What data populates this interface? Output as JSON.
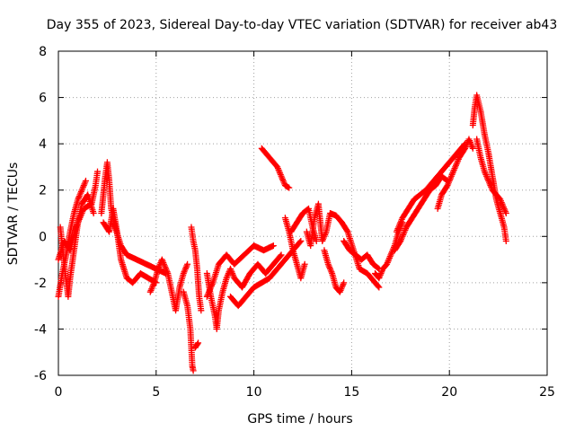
{
  "chart_data": {
    "type": "scatter",
    "title": "Day 355 of 2023, Sidereal Day-to-day VTEC variation (SDTVAR) for receiver ab43",
    "xlabel": "GPS time / hours",
    "ylabel": "SDTVAR / TECUs",
    "xlim": [
      0,
      25
    ],
    "ylim": [
      -6,
      8
    ],
    "xticks": [
      0,
      5,
      10,
      15,
      20,
      25
    ],
    "yticks": [
      -6,
      -4,
      -2,
      0,
      2,
      4,
      6,
      8
    ],
    "grid": true,
    "marker": "+",
    "series_color": "#ff0000",
    "tracks": [
      [
        [
          0.0,
          -2.6
        ],
        [
          0.2,
          -1.6
        ],
        [
          0.4,
          -0.8
        ],
        [
          0.6,
          0.2
        ],
        [
          0.8,
          1.0
        ],
        [
          1.0,
          1.6
        ],
        [
          1.2,
          2.0
        ],
        [
          1.4,
          2.4
        ]
      ],
      [
        [
          0.1,
          0.4
        ],
        [
          0.2,
          -0.4
        ],
        [
          0.35,
          -1.6
        ],
        [
          0.5,
          -2.6
        ],
        [
          0.6,
          -1.8
        ],
        [
          0.8,
          -0.6
        ],
        [
          1.0,
          0.6
        ],
        [
          1.2,
          1.4
        ],
        [
          1.5,
          1.8
        ],
        [
          1.8,
          1.0
        ]
      ],
      [
        [
          0.0,
          -1.0
        ],
        [
          0.3,
          -0.2
        ],
        [
          0.6,
          -0.6
        ],
        [
          0.9,
          0.4
        ],
        [
          1.3,
          1.2
        ],
        [
          1.7,
          1.4
        ],
        [
          1.9,
          2.2
        ],
        [
          2.0,
          2.8
        ]
      ],
      [
        [
          2.2,
          1.0
        ],
        [
          2.4,
          2.6
        ],
        [
          2.5,
          3.2
        ],
        [
          2.6,
          2.4
        ],
        [
          2.7,
          1.2
        ],
        [
          2.9,
          0.4
        ],
        [
          3.2,
          -0.4
        ],
        [
          3.5,
          -0.8
        ],
        [
          4.0,
          -1.0
        ],
        [
          4.5,
          -1.2
        ],
        [
          5.0,
          -1.4
        ],
        [
          5.5,
          -1.6
        ]
      ],
      [
        [
          2.3,
          0.6
        ],
        [
          2.6,
          0.2
        ],
        [
          2.8,
          1.2
        ],
        [
          3.0,
          0.2
        ],
        [
          3.2,
          -1.0
        ],
        [
          3.5,
          -1.8
        ],
        [
          3.8,
          -2.0
        ],
        [
          4.2,
          -1.6
        ],
        [
          4.6,
          -1.8
        ],
        [
          5.0,
          -2.0
        ]
      ],
      [
        [
          4.7,
          -2.4
        ],
        [
          4.9,
          -2.0
        ],
        [
          5.1,
          -1.4
        ],
        [
          5.3,
          -1.0
        ],
        [
          5.6,
          -1.6
        ],
        [
          5.8,
          -2.4
        ],
        [
          6.0,
          -3.2
        ],
        [
          6.2,
          -2.2
        ],
        [
          6.4,
          -1.6
        ],
        [
          6.6,
          -1.2
        ]
      ],
      [
        [
          6.4,
          -2.4
        ],
        [
          6.6,
          -3.0
        ],
        [
          6.75,
          -4.0
        ],
        [
          6.85,
          -5.6
        ],
        [
          6.9,
          -5.8
        ]
      ],
      [
        [
          6.8,
          0.4
        ],
        [
          6.9,
          -0.2
        ],
        [
          7.0,
          -0.6
        ],
        [
          7.1,
          -1.4
        ],
        [
          7.2,
          -2.6
        ],
        [
          7.3,
          -3.2
        ]
      ],
      [
        [
          7.0,
          -4.8
        ],
        [
          7.15,
          -4.6
        ]
      ],
      [
        [
          7.6,
          -1.6
        ],
        [
          7.8,
          -2.6
        ],
        [
          8.0,
          -3.4
        ],
        [
          8.1,
          -4.0
        ],
        [
          8.2,
          -3.2
        ],
        [
          8.4,
          -2.4
        ],
        [
          8.6,
          -1.8
        ],
        [
          8.8,
          -1.4
        ],
        [
          9.0,
          -1.8
        ],
        [
          9.4,
          -2.2
        ],
        [
          9.8,
          -1.6
        ],
        [
          10.2,
          -1.2
        ],
        [
          10.6,
          -1.6
        ],
        [
          11.0,
          -1.2
        ],
        [
          11.4,
          -0.8
        ]
      ],
      [
        [
          7.6,
          -2.6
        ],
        [
          7.9,
          -2.0
        ],
        [
          8.2,
          -1.2
        ],
        [
          8.6,
          -0.8
        ],
        [
          9.0,
          -1.2
        ],
        [
          9.5,
          -0.8
        ],
        [
          10.0,
          -0.4
        ],
        [
          10.5,
          -0.6
        ],
        [
          11.0,
          -0.4
        ]
      ],
      [
        [
          8.8,
          -2.6
        ],
        [
          9.2,
          -3.0
        ],
        [
          9.6,
          -2.6
        ],
        [
          10.0,
          -2.2
        ],
        [
          10.4,
          -2.0
        ],
        [
          10.8,
          -1.8
        ],
        [
          11.2,
          -1.4
        ],
        [
          11.6,
          -1.0
        ],
        [
          12.0,
          -0.6
        ],
        [
          12.4,
          -0.2
        ]
      ],
      [
        [
          10.4,
          3.8
        ],
        [
          10.8,
          3.4
        ],
        [
          11.2,
          3.0
        ],
        [
          11.4,
          2.6
        ],
        [
          11.6,
          2.2
        ],
        [
          11.8,
          2.1
        ]
      ],
      [
        [
          11.6,
          0.8
        ],
        [
          11.8,
          0.2
        ],
        [
          12.0,
          -0.6
        ],
        [
          12.2,
          -1.2
        ],
        [
          12.4,
          -1.8
        ],
        [
          12.6,
          -1.2
        ]
      ],
      [
        [
          11.9,
          0.2
        ],
        [
          12.2,
          0.6
        ],
        [
          12.5,
          1.0
        ],
        [
          12.8,
          1.2
        ],
        [
          13.0,
          0.4
        ],
        [
          13.2,
          -0.2
        ]
      ],
      [
        [
          12.7,
          0.2
        ],
        [
          12.9,
          -0.4
        ],
        [
          13.1,
          0.8
        ],
        [
          13.3,
          1.4
        ],
        [
          13.5,
          -0.2
        ],
        [
          13.7,
          0.2
        ],
        [
          13.9,
          1.0
        ],
        [
          14.2,
          0.9
        ],
        [
          14.5,
          0.6
        ],
        [
          14.8,
          0.2
        ],
        [
          15.1,
          -0.6
        ],
        [
          15.4,
          -1.4
        ],
        [
          15.8,
          -1.6
        ],
        [
          16.2,
          -2.0
        ],
        [
          16.4,
          -2.2
        ]
      ],
      [
        [
          13.6,
          -0.6
        ],
        [
          13.8,
          -1.2
        ],
        [
          14.0,
          -1.6
        ],
        [
          14.2,
          -2.2
        ],
        [
          14.4,
          -2.4
        ],
        [
          14.6,
          -2.0
        ]
      ],
      [
        [
          14.6,
          -0.2
        ],
        [
          14.9,
          -0.6
        ],
        [
          15.2,
          -0.8
        ],
        [
          15.5,
          -1.0
        ],
        [
          15.8,
          -0.8
        ],
        [
          16.1,
          -1.2
        ],
        [
          16.4,
          -1.4
        ]
      ],
      [
        [
          16.2,
          -1.6
        ],
        [
          16.4,
          -1.8
        ],
        [
          16.6,
          -1.4
        ],
        [
          16.8,
          -1.2
        ],
        [
          17.0,
          -0.8
        ],
        [
          17.2,
          -0.4
        ],
        [
          17.4,
          0.2
        ],
        [
          17.6,
          0.6
        ]
      ],
      [
        [
          17.2,
          -0.6
        ],
        [
          17.5,
          -0.2
        ],
        [
          17.8,
          0.4
        ],
        [
          18.1,
          0.8
        ],
        [
          18.4,
          1.2
        ],
        [
          18.7,
          1.6
        ],
        [
          19.0,
          2.0
        ],
        [
          19.3,
          2.2
        ],
        [
          19.6,
          2.6
        ],
        [
          19.9,
          2.4
        ]
      ],
      [
        [
          17.3,
          0.2
        ],
        [
          17.6,
          0.8
        ],
        [
          17.9,
          1.2
        ],
        [
          18.2,
          1.6
        ],
        [
          18.5,
          1.8
        ],
        [
          18.8,
          2.0
        ],
        [
          19.2,
          2.4
        ],
        [
          19.6,
          2.8
        ],
        [
          20.0,
          3.2
        ],
        [
          20.4,
          3.6
        ],
        [
          20.8,
          4.0
        ]
      ],
      [
        [
          19.4,
          1.2
        ],
        [
          19.6,
          1.8
        ],
        [
          19.9,
          2.2
        ],
        [
          20.2,
          2.8
        ],
        [
          20.5,
          3.4
        ],
        [
          20.8,
          3.8
        ],
        [
          21.0,
          4.2
        ],
        [
          21.2,
          3.8
        ]
      ],
      [
        [
          21.2,
          4.8
        ],
        [
          21.3,
          5.6
        ],
        [
          21.4,
          6.1
        ],
        [
          21.6,
          5.4
        ],
        [
          21.8,
          4.4
        ],
        [
          22.0,
          3.6
        ],
        [
          22.2,
          2.6
        ],
        [
          22.4,
          1.6
        ],
        [
          22.6,
          1.0
        ],
        [
          22.8,
          0.4
        ],
        [
          22.9,
          -0.2
        ]
      ],
      [
        [
          21.4,
          4.2
        ],
        [
          21.6,
          3.4
        ],
        [
          21.8,
          2.8
        ],
        [
          22.0,
          2.4
        ],
        [
          22.2,
          2.0
        ],
        [
          22.4,
          1.8
        ],
        [
          22.6,
          1.6
        ],
        [
          22.8,
          1.2
        ],
        [
          22.9,
          1.0
        ]
      ]
    ]
  }
}
